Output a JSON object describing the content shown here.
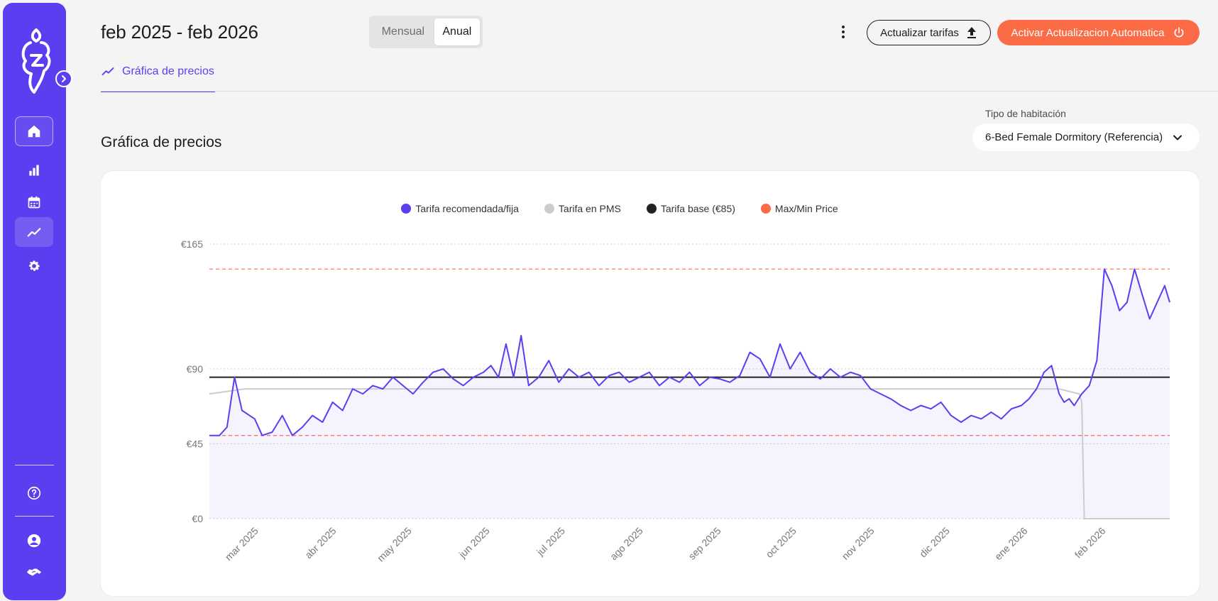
{
  "header": {
    "period": "feb 2025 - feb 2026",
    "toggle": {
      "mensual": "Mensual",
      "anual": "Anual",
      "selected": "Anual"
    },
    "update_button": "Actualizar tarifas",
    "auto_button": "Activar Actualizacion Automatica"
  },
  "tab": {
    "label": "Gráfica de precios"
  },
  "section_title": "Gráfica de precios",
  "room_select": {
    "label": "Tipo de habitación",
    "value": "6-Bed Female Dormitory (Referencia)"
  },
  "sidebar": {
    "items": [
      "home-icon",
      "bar-chart-icon",
      "calendar-icon",
      "trend-icon",
      "gear-icon"
    ],
    "bottom": [
      "help-icon",
      "user-icon",
      "handshake-icon"
    ]
  },
  "colors": {
    "brand": "#5b3ef0",
    "orange": "#fb6b45",
    "pms": "#cccccc",
    "base": "#222222"
  },
  "chart_data": {
    "type": "line",
    "title": "",
    "legend": [
      {
        "name": "Tarifa recomendada/fija",
        "color": "#5b3ef0"
      },
      {
        "name": "Tarifa en PMS",
        "color": "#cccccc"
      },
      {
        "name": "Tarifa base (€85)",
        "color": "#222222"
      },
      {
        "name": "Max/Min Price",
        "color": "#fb6b45"
      }
    ],
    "legend_position": "top-center",
    "y_ticks": [
      "€0",
      "€45",
      "€90",
      "€165"
    ],
    "y_tick_values": [
      0,
      45,
      90,
      165
    ],
    "x_ticks": [
      "mar 2025",
      "abr 2025",
      "may 2025",
      "jun 2025",
      "jul 2025",
      "ago 2025",
      "sep 2025",
      "oct 2025",
      "nov 2025",
      "dic 2025",
      "ene 2026",
      "feb 2026"
    ],
    "ylim": [
      0,
      165
    ],
    "x_start": "2025-02-11",
    "x_end": "2026-02-28",
    "grid": true,
    "base_price": 85,
    "max_price": 150,
    "min_price": 50,
    "series": [
      {
        "name": "Tarifa recomendada/fija",
        "color": "#5b3ef0",
        "x": [
          "2025-02-11",
          "2025-02-15",
          "2025-02-18",
          "2025-02-21",
          "2025-02-24",
          "2025-03-01",
          "2025-03-04",
          "2025-03-08",
          "2025-03-12",
          "2025-03-16",
          "2025-03-20",
          "2025-03-24",
          "2025-03-28",
          "2025-04-01",
          "2025-04-05",
          "2025-04-09",
          "2025-04-13",
          "2025-04-17",
          "2025-04-21",
          "2025-04-25",
          "2025-04-29",
          "2025-05-03",
          "2025-05-07",
          "2025-05-11",
          "2025-05-15",
          "2025-05-19",
          "2025-05-23",
          "2025-05-27",
          "2025-05-31",
          "2025-06-03",
          "2025-06-06",
          "2025-06-09",
          "2025-06-12",
          "2025-06-15",
          "2025-06-18",
          "2025-06-22",
          "2025-06-26",
          "2025-06-30",
          "2025-07-04",
          "2025-07-08",
          "2025-07-12",
          "2025-07-16",
          "2025-07-20",
          "2025-07-24",
          "2025-07-28",
          "2025-08-01",
          "2025-08-05",
          "2025-08-09",
          "2025-08-13",
          "2025-08-17",
          "2025-08-21",
          "2025-08-25",
          "2025-08-29",
          "2025-09-02",
          "2025-09-06",
          "2025-09-10",
          "2025-09-14",
          "2025-09-18",
          "2025-09-22",
          "2025-09-26",
          "2025-09-30",
          "2025-10-04",
          "2025-10-08",
          "2025-10-12",
          "2025-10-16",
          "2025-10-20",
          "2025-10-24",
          "2025-10-28",
          "2025-11-01",
          "2025-11-05",
          "2025-11-09",
          "2025-11-13",
          "2025-11-17",
          "2025-11-21",
          "2025-11-25",
          "2025-11-29",
          "2025-12-03",
          "2025-12-07",
          "2025-12-11",
          "2025-12-15",
          "2025-12-19",
          "2025-12-23",
          "2025-12-27",
          "2025-12-31",
          "2026-01-03",
          "2026-01-06",
          "2026-01-09",
          "2026-01-12",
          "2026-01-15",
          "2026-01-17",
          "2026-01-19",
          "2026-01-21",
          "2026-01-24",
          "2026-01-27",
          "2026-01-30",
          "2026-02-02",
          "2026-02-05",
          "2026-02-08",
          "2026-02-11",
          "2026-02-14",
          "2026-02-17",
          "2026-02-20",
          "2026-02-23",
          "2026-02-26",
          "2026-02-28"
        ],
        "y": [
          50,
          50,
          55,
          85,
          65,
          60,
          50,
          52,
          62,
          50,
          55,
          62,
          58,
          70,
          65,
          78,
          75,
          80,
          78,
          85,
          80,
          75,
          82,
          88,
          90,
          84,
          80,
          85,
          88,
          92,
          85,
          105,
          85,
          110,
          80,
          85,
          95,
          82,
          90,
          85,
          88,
          80,
          86,
          88,
          82,
          85,
          88,
          80,
          85,
          82,
          88,
          80,
          85,
          84,
          82,
          86,
          100,
          96,
          85,
          105,
          90,
          100,
          88,
          84,
          90,
          85,
          88,
          86,
          78,
          75,
          72,
          68,
          65,
          68,
          66,
          70,
          62,
          58,
          62,
          60,
          64,
          60,
          66,
          68,
          72,
          78,
          88,
          92,
          75,
          70,
          72,
          68,
          75,
          80,
          95,
          150,
          140,
          125,
          130,
          150,
          135,
          120,
          130,
          140,
          130
        ]
      },
      {
        "name": "Tarifa en PMS",
        "color": "#cccccc",
        "x": [
          "2025-02-11",
          "2025-02-25",
          "2025-03-15",
          "2025-04-15",
          "2025-05-15",
          "2025-06-15",
          "2025-07-15",
          "2025-08-15",
          "2025-09-15",
          "2025-10-15",
          "2025-11-15",
          "2025-12-15",
          "2026-01-15",
          "2026-01-23",
          "2026-01-24",
          "2026-01-25",
          "2026-02-28"
        ],
        "y": [
          75,
          78,
          78,
          78,
          78,
          78,
          78,
          78,
          78,
          78,
          78,
          78,
          78,
          75,
          70,
          0,
          0
        ]
      },
      {
        "name": "Tarifa base (€85)",
        "color": "#222222",
        "x": [
          "2025-02-11",
          "2026-02-28"
        ],
        "y": [
          85,
          85
        ]
      }
    ]
  }
}
